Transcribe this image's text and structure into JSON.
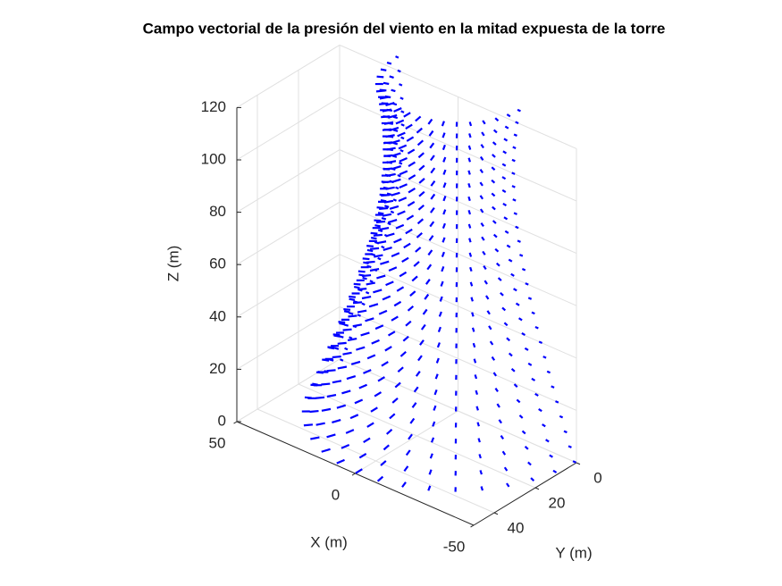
{
  "chart_data": {
    "type": "quiver3",
    "title": "Campo vectorial de la presión del viento en la mitad expuesta de la torre",
    "xlabel": "X (m)",
    "ylabel": "Y (m)",
    "zlabel": "Z (m)",
    "xlim": [
      -50,
      50
    ],
    "ylim": [
      0,
      50
    ],
    "zlim": [
      0,
      120
    ],
    "xticks": [
      -50,
      0,
      50
    ],
    "yticks": [
      0,
      20,
      40
    ],
    "zticks": [
      0,
      20,
      40,
      60,
      80,
      100,
      120
    ],
    "grid": true,
    "color": "#0000ff",
    "z_levels": [
      0,
      5,
      10,
      15,
      20,
      25,
      30,
      35,
      40,
      45,
      50,
      55,
      60,
      65,
      70,
      75,
      80,
      85,
      90,
      95,
      100,
      105,
      110,
      115,
      120,
      125
    ],
    "radius": [
      49.8,
      47.9,
      46.0,
      44.2,
      42.4,
      40.6,
      38.9,
      37.2,
      35.5,
      33.9,
      32.4,
      31.0,
      29.7,
      28.4,
      27.3,
      26.4,
      25.5,
      24.9,
      24.4,
      24.1,
      24.0,
      24.1,
      24.4,
      24.9,
      25.5,
      26.4
    ],
    "theta": [
      0,
      10,
      20,
      30,
      40,
      50,
      60,
      70,
      80,
      90,
      100,
      110,
      120,
      130,
      140,
      150,
      160,
      170,
      180
    ],
    "pressure": [
      0.4,
      0.5,
      0.6,
      0.7,
      0.8,
      0.9,
      0.95,
      1,
      1,
      1,
      1,
      1,
      0.95,
      0.9,
      0.8,
      0.7,
      0.6,
      0.5,
      0.4
    ]
  }
}
